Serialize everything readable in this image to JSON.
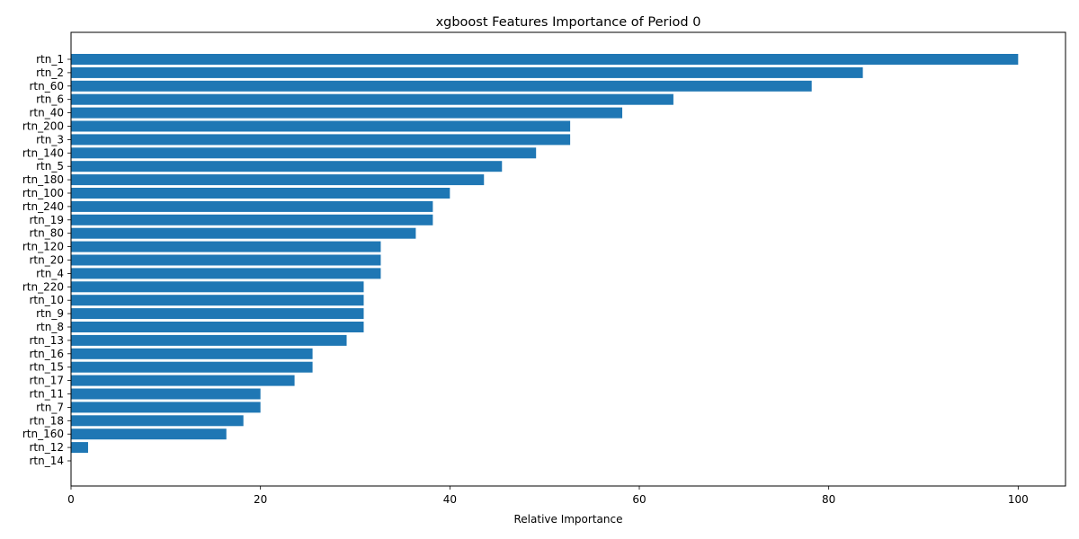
{
  "chart_data": {
    "type": "bar",
    "orientation": "horizontal",
    "title": "xgboost Features Importance of Period 0",
    "xlabel": "Relative Importance",
    "ylabel": "",
    "xlim": [
      0,
      105
    ],
    "xticks": [
      0,
      20,
      40,
      60,
      80,
      100
    ],
    "xtick_labels": [
      "0",
      "20",
      "40",
      "60",
      "80",
      "100"
    ],
    "grid": false,
    "bar_color": "#1f77b4",
    "categories": [
      "rtn_1",
      "rtn_2",
      "rtn_60",
      "rtn_6",
      "rtn_40",
      "rtn_200",
      "rtn_3",
      "rtn_140",
      "rtn_5",
      "rtn_180",
      "rtn_100",
      "rtn_240",
      "rtn_19",
      "rtn_80",
      "rtn_120",
      "rtn_20",
      "rtn_4",
      "rtn_220",
      "rtn_10",
      "rtn_9",
      "rtn_8",
      "rtn_13",
      "rtn_16",
      "rtn_15",
      "rtn_17",
      "rtn_11",
      "rtn_7",
      "rtn_18",
      "rtn_160",
      "rtn_12",
      "rtn_14"
    ],
    "values": [
      100,
      83.6,
      78.2,
      63.6,
      58.2,
      52.7,
      52.7,
      49.1,
      45.5,
      43.6,
      40.0,
      38.2,
      38.2,
      36.4,
      32.7,
      32.7,
      32.7,
      30.9,
      30.9,
      30.9,
      30.9,
      29.1,
      25.5,
      25.5,
      23.6,
      20.0,
      20.0,
      18.2,
      16.4,
      1.8,
      0
    ]
  }
}
